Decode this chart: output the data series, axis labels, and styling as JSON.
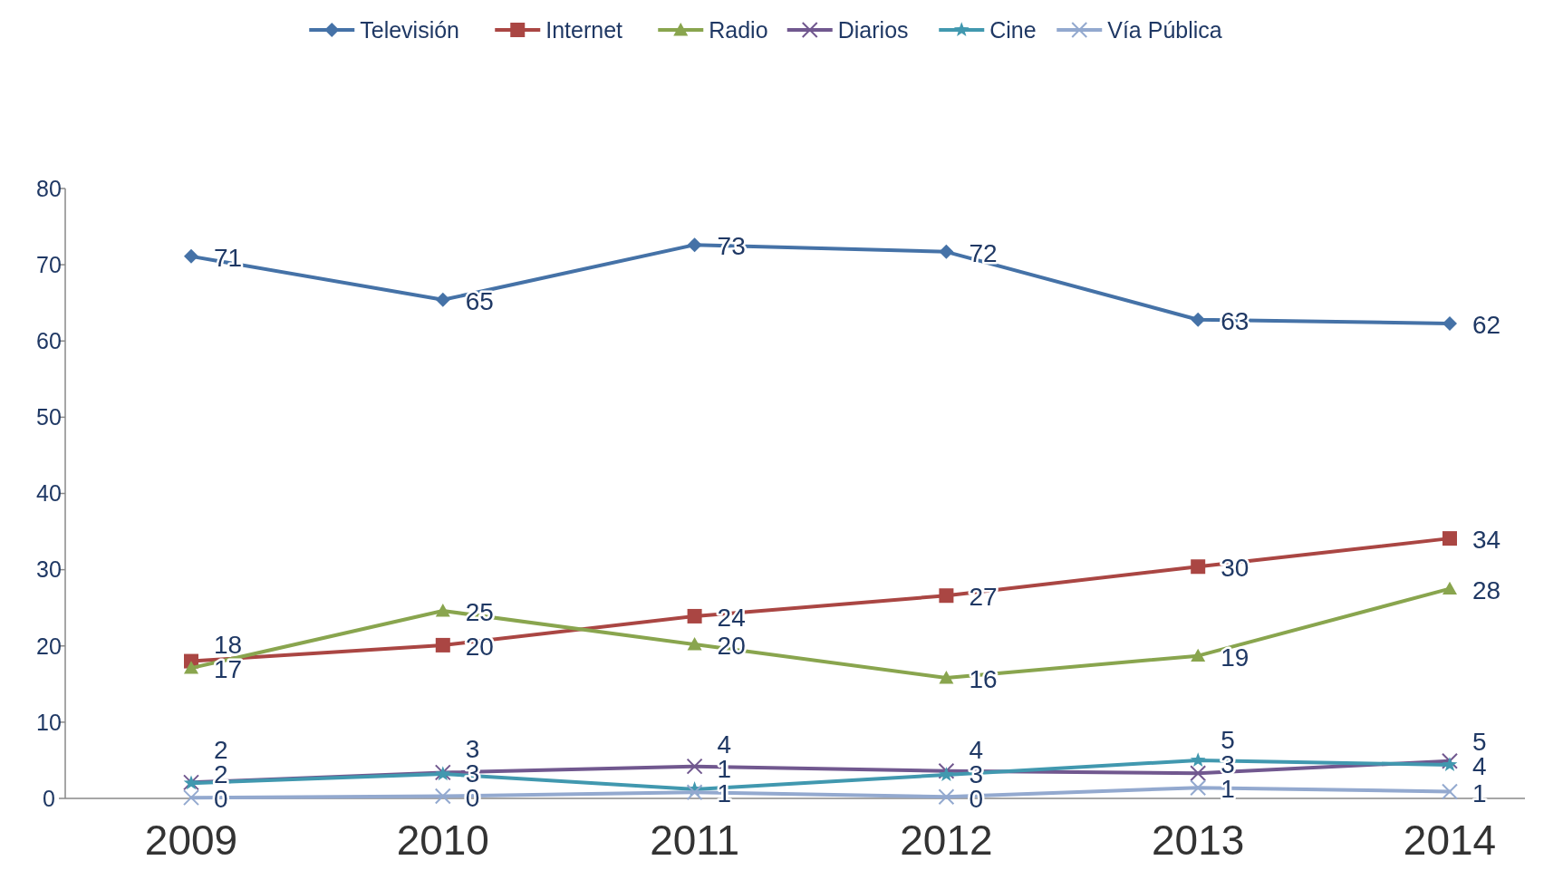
{
  "chart_data": {
    "type": "line",
    "categories": [
      "2009",
      "2010",
      "2011",
      "2012",
      "2013",
      "2014"
    ],
    "ylim": [
      0,
      80
    ],
    "yticks": [
      0,
      10,
      20,
      30,
      40,
      50,
      60,
      70,
      80
    ],
    "grid": false,
    "legend": "top",
    "line_style": "solid",
    "series": [
      {
        "name": "Televisión",
        "color": "#4572a7",
        "marker": "diamond",
        "values": [
          71.1,
          65.4,
          72.6,
          71.7,
          62.8,
          62.3
        ],
        "value_labels": [
          "71",
          "65",
          "73",
          "72",
          "63",
          "62"
        ]
      },
      {
        "name": "Internet",
        "color": "#aa4643",
        "marker": "square",
        "values": [
          18.0,
          20.1,
          23.9,
          26.6,
          30.4,
          34.1
        ],
        "value_labels": [
          "18",
          "20",
          "24",
          "27",
          "30",
          "34"
        ]
      },
      {
        "name": "Radio",
        "color": "#89a54e",
        "marker": "triangle",
        "values": [
          17.1,
          24.6,
          20.2,
          15.8,
          18.7,
          27.5
        ],
        "value_labels": [
          "17",
          "25",
          "20",
          "16",
          "19",
          "28"
        ]
      },
      {
        "name": "Diarios",
        "color": "#71588f",
        "marker": "cross",
        "values": [
          2.1,
          3.4,
          4.2,
          3.6,
          3.3,
          4.9
        ],
        "value_labels": [
          "2",
          "3",
          "4",
          "4",
          "3",
          "5"
        ]
      },
      {
        "name": "Cine",
        "color": "#4198af",
        "marker": "star",
        "values": [
          2.0,
          3.2,
          1.2,
          3.1,
          5.0,
          4.4
        ],
        "value_labels": [
          "2",
          "3",
          "1",
          "3",
          "5",
          "4"
        ]
      },
      {
        "name": "Vía Pública",
        "color": "#93a9cf",
        "marker": "cross",
        "values": [
          0.1,
          0.3,
          0.8,
          0.2,
          1.4,
          0.9
        ],
        "value_labels": [
          "0",
          "0",
          "1",
          "0",
          "1",
          "1"
        ]
      }
    ]
  }
}
